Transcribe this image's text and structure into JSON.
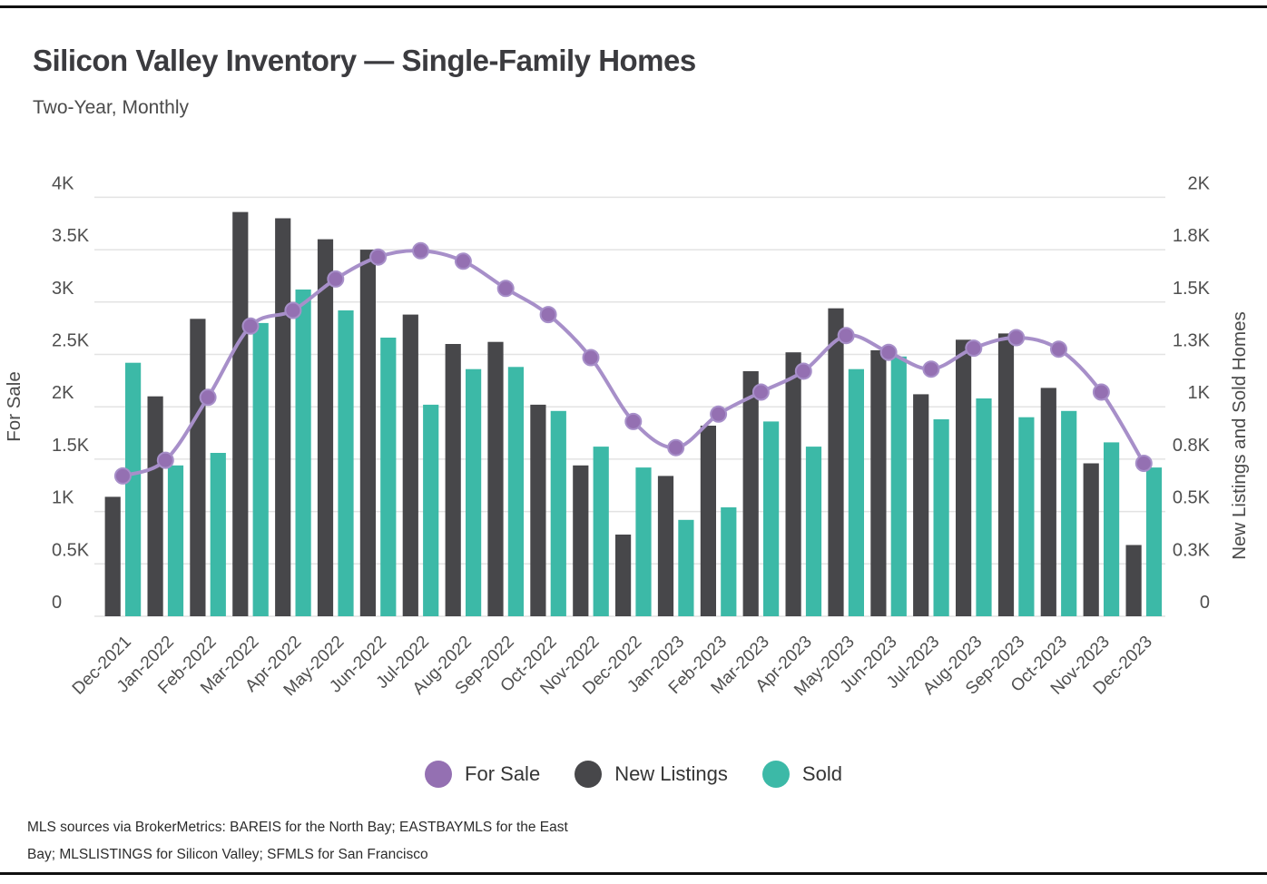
{
  "header": {
    "title": "Silicon Valley Inventory — Single-Family Homes",
    "subtitle": "Two-Year, Monthly"
  },
  "chart_data": {
    "type": "bar",
    "title": "Silicon Valley Inventory — Single-Family Homes",
    "subtitle": "Two-Year, Monthly",
    "grid": true,
    "legend_position": "bottom",
    "categories": [
      "Dec-2021",
      "Jan-2022",
      "Feb-2022",
      "Mar-2022",
      "Apr-2022",
      "May-2022",
      "Jun-2022",
      "Jul-2022",
      "Aug-2022",
      "Sep-2022",
      "Oct-2022",
      "Nov-2022",
      "Dec-2022",
      "Jan-2023",
      "Feb-2023",
      "Mar-2023",
      "Apr-2023",
      "May-2023",
      "Jun-2023",
      "Jul-2023",
      "Aug-2023",
      "Sep-2023",
      "Oct-2023",
      "Nov-2023",
      "Dec-2023"
    ],
    "series": [
      {
        "name": "For Sale",
        "type": "line",
        "axis": "left",
        "color": "#9470b2",
        "line_color": "#a78fc9",
        "values": [
          1340,
          1490,
          2090,
          2770,
          2920,
          3220,
          3430,
          3490,
          3390,
          3130,
          2880,
          2470,
          1860,
          1610,
          1930,
          2140,
          2340,
          2680,
          2520,
          2360,
          2560,
          2660,
          2550,
          2140,
          1460
        ]
      },
      {
        "name": "New Listings",
        "type": "bar",
        "axis": "right",
        "color": "#47474a",
        "values": [
          570,
          1050,
          1420,
          1930,
          1900,
          1800,
          1750,
          1440,
          1300,
          1310,
          1010,
          720,
          390,
          670,
          910,
          1170,
          1260,
          1470,
          1270,
          1060,
          1320,
          1350,
          1090,
          730,
          340
        ]
      },
      {
        "name": "Sold",
        "type": "bar",
        "axis": "right",
        "color": "#3cb9a7",
        "values": [
          1210,
          720,
          780,
          1400,
          1560,
          1460,
          1330,
          1010,
          1180,
          1190,
          980,
          810,
          710,
          460,
          520,
          930,
          810,
          1180,
          1240,
          940,
          1040,
          950,
          980,
          830,
          710
        ]
      }
    ],
    "left_axis": {
      "label": "For Sale",
      "range": [
        0,
        4000
      ],
      "ticks": [
        {
          "value": 4000,
          "label": "4K"
        },
        {
          "value": 3500,
          "label": "3.5K"
        },
        {
          "value": 3000,
          "label": "3K"
        },
        {
          "value": 2500,
          "label": "2.5K"
        },
        {
          "value": 2000,
          "label": "2K"
        },
        {
          "value": 1500,
          "label": "1.5K"
        },
        {
          "value": 1000,
          "label": "1K"
        },
        {
          "value": 500,
          "label": "0.5K"
        },
        {
          "value": 0,
          "label": "0"
        }
      ]
    },
    "right_axis": {
      "label": "New Listings and Sold Homes",
      "range": [
        0,
        2000
      ],
      "ticks": [
        {
          "value": 2000,
          "label": "2K"
        },
        {
          "value": 1750,
          "label": "1.8K"
        },
        {
          "value": 1500,
          "label": "1.5K"
        },
        {
          "value": 1250,
          "label": "1.3K"
        },
        {
          "value": 1000,
          "label": "1K"
        },
        {
          "value": 750,
          "label": "0.8K"
        },
        {
          "value": 500,
          "label": "0.5K"
        },
        {
          "value": 250,
          "label": "0.3K"
        },
        {
          "value": 0,
          "label": "0"
        }
      ]
    },
    "colors": {
      "grid": "#e3e3e3",
      "tick_text": "#4f4f4f",
      "axis_title_text": "#4a4a4a"
    }
  },
  "legend": {
    "items": [
      {
        "label": "For Sale",
        "color": "#9470b2"
      },
      {
        "label": "New Listings",
        "color": "#47474a"
      },
      {
        "label": "Sold",
        "color": "#3cb9a7"
      }
    ]
  },
  "footer": {
    "line1": "MLS sources via BrokerMetrics: BAREIS for the North Bay; EASTBAYMLS for the East",
    "line2": "Bay; MLSLISTINGS for Silicon Valley; SFMLS for San Francisco"
  }
}
